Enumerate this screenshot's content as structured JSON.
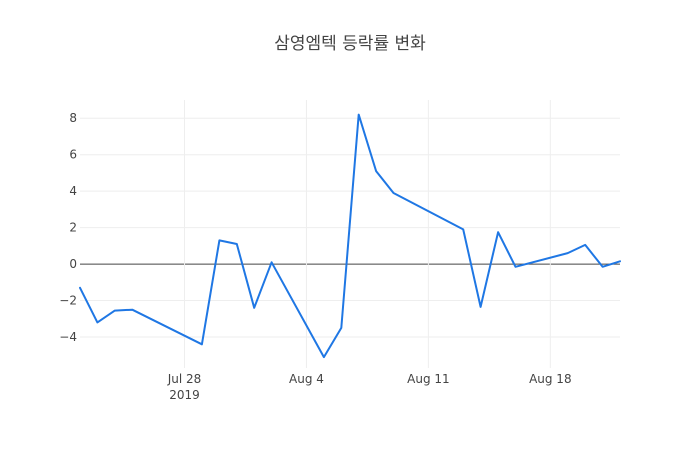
{
  "chart_data": {
    "type": "line",
    "title": "삼영엠텍 등락률 변화",
    "xlabel": "",
    "ylabel": "",
    "x": [
      "2019-07-22",
      "2019-07-23",
      "2019-07-24",
      "2019-07-25",
      "2019-07-29",
      "2019-07-30",
      "2019-07-31",
      "2019-08-01",
      "2019-08-02",
      "2019-08-05",
      "2019-08-06",
      "2019-08-07",
      "2019-08-08",
      "2019-08-09",
      "2019-08-13",
      "2019-08-14",
      "2019-08-15",
      "2019-08-16",
      "2019-08-19",
      "2019-08-20",
      "2019-08-21",
      "2019-08-22"
    ],
    "series": [
      {
        "values": [
          -1.3,
          -3.2,
          -2.55,
          -2.5,
          -4.4,
          1.3,
          1.1,
          -2.4,
          0.1,
          -5.1,
          -3.5,
          8.2,
          5.1,
          3.9,
          1.9,
          -2.35,
          1.75,
          -0.15,
          0.6,
          1.05,
          -0.15,
          0.15
        ]
      }
    ],
    "ylim": [
      -5.7,
      9.0
    ],
    "y_ticks": [
      "8",
      "6",
      "4",
      "2",
      "0",
      "−2",
      "−4"
    ],
    "x_ticks": [
      "Jul 28",
      "Aug 4",
      "Aug 11",
      "Aug 18"
    ],
    "x_ticks_sub": "2019",
    "grid": true,
    "legend": "none",
    "color": "#1f77e4"
  }
}
